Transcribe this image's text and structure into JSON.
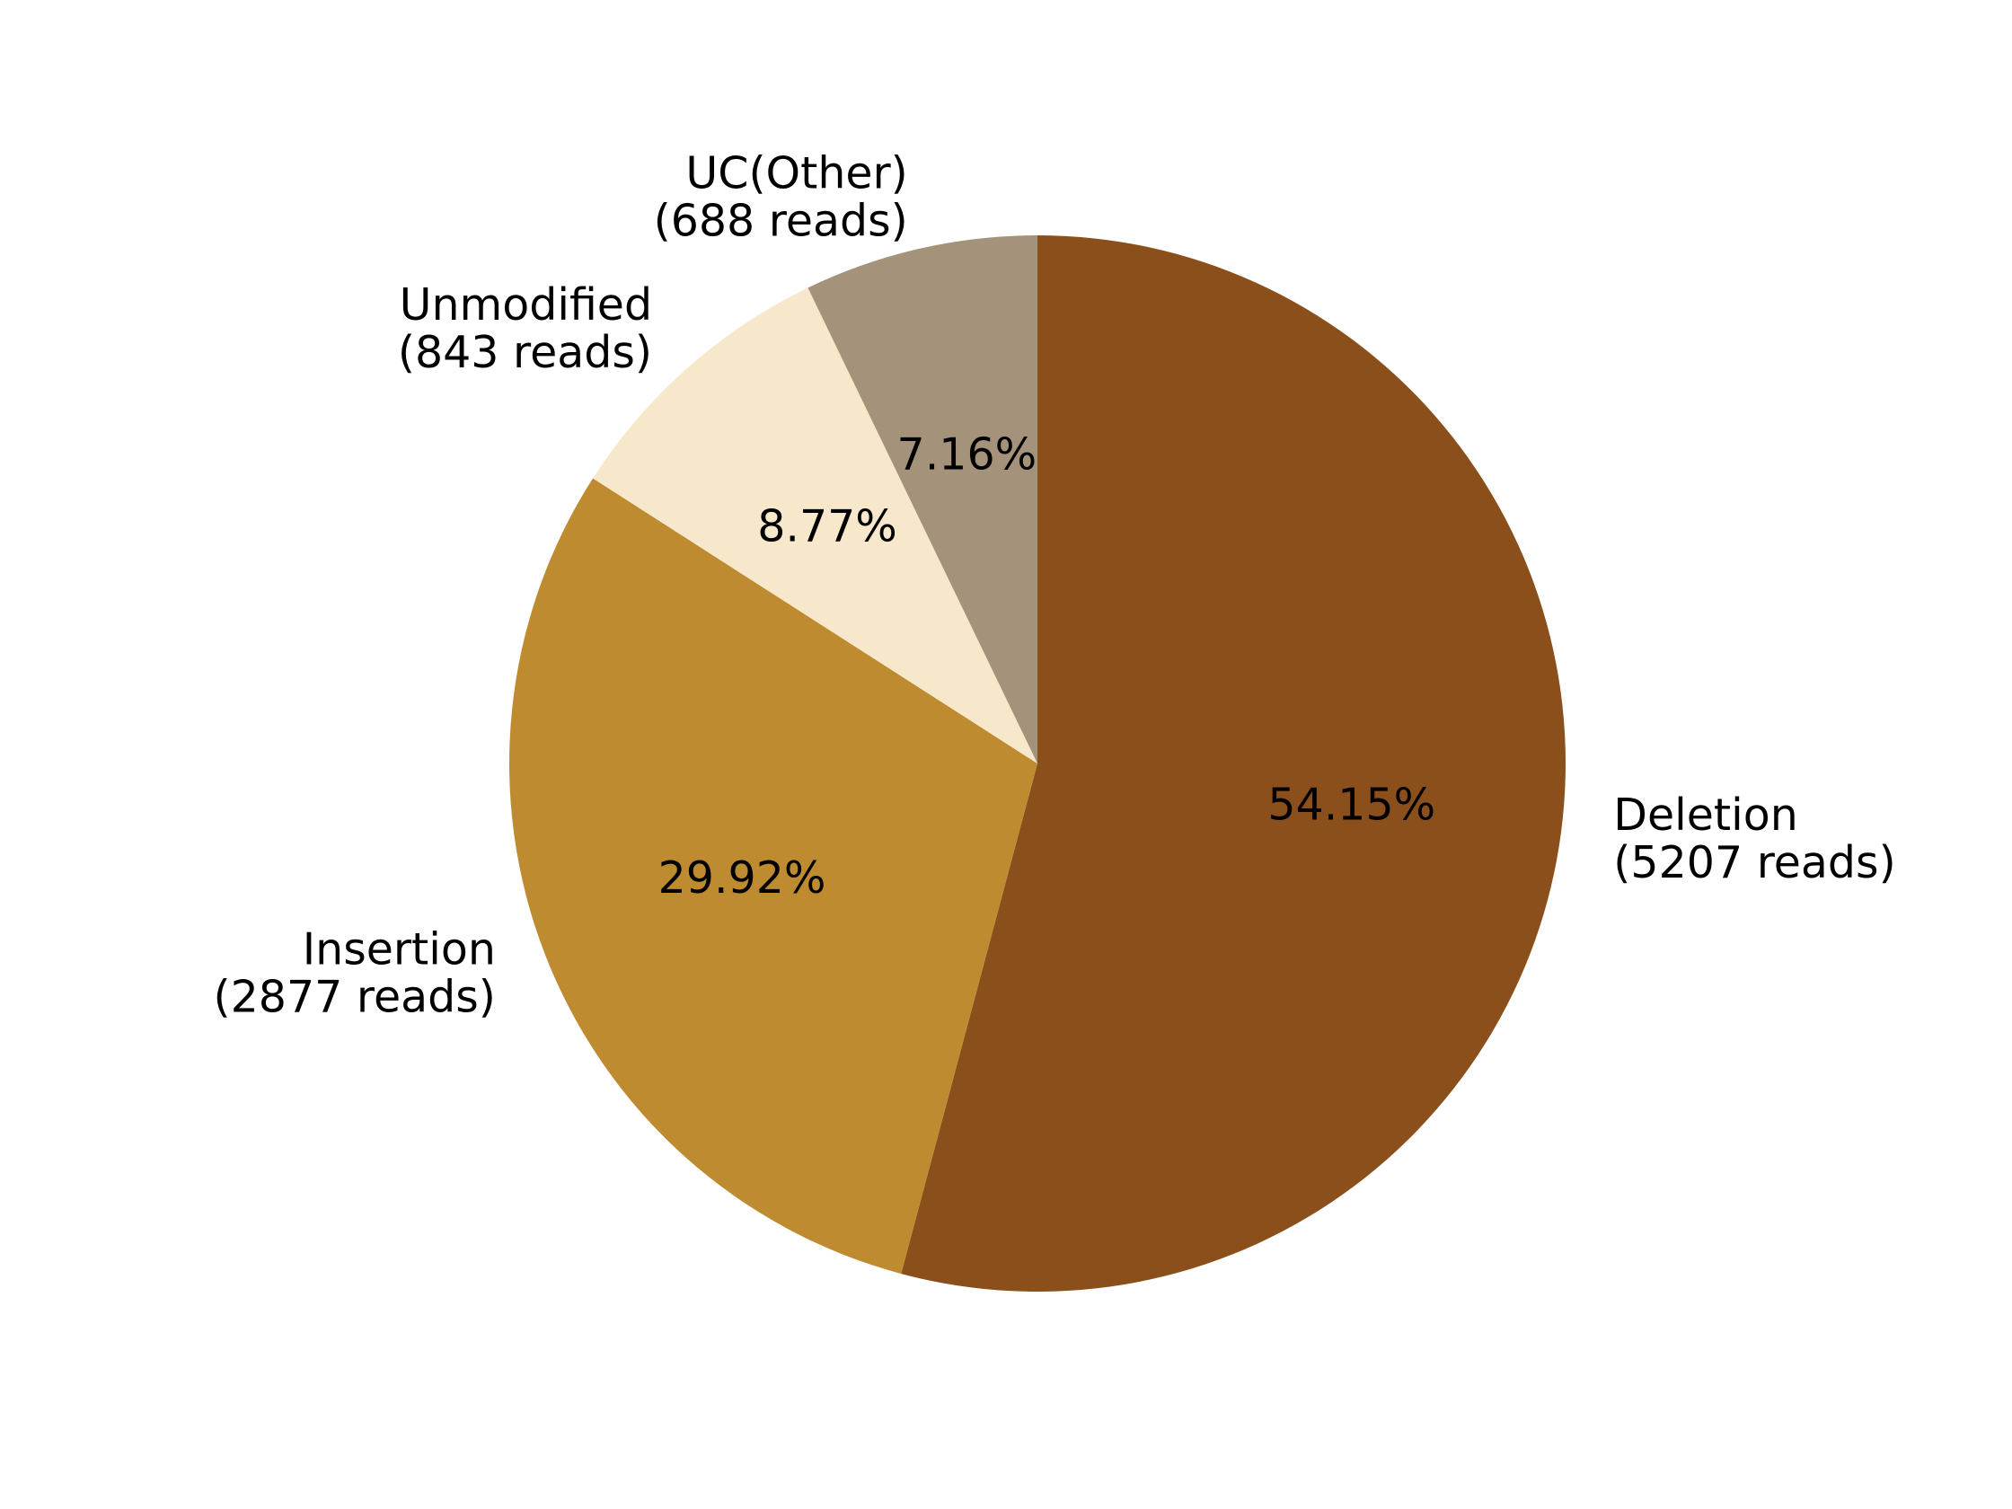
{
  "chart_data": {
    "type": "pie",
    "start_angle_deg": 90,
    "direction": "clockwise",
    "slices": [
      {
        "label": "Deletion",
        "count_text": "(5207 reads)",
        "value": 5207,
        "percent_text": "54.15%",
        "color": "#8B4F1B"
      },
      {
        "label": "Insertion",
        "count_text": "(2877 reads)",
        "value": 2877,
        "percent_text": "29.92%",
        "color": "#BE8B31"
      },
      {
        "label": "Unmodified",
        "count_text": "(843 reads)",
        "value": 843,
        "percent_text": "8.77%",
        "color": "#F8E8CB"
      },
      {
        "label": "UC(Other)",
        "count_text": "(688 reads)",
        "value": 688,
        "percent_text": "7.16%",
        "color": "#A4927A"
      }
    ]
  }
}
